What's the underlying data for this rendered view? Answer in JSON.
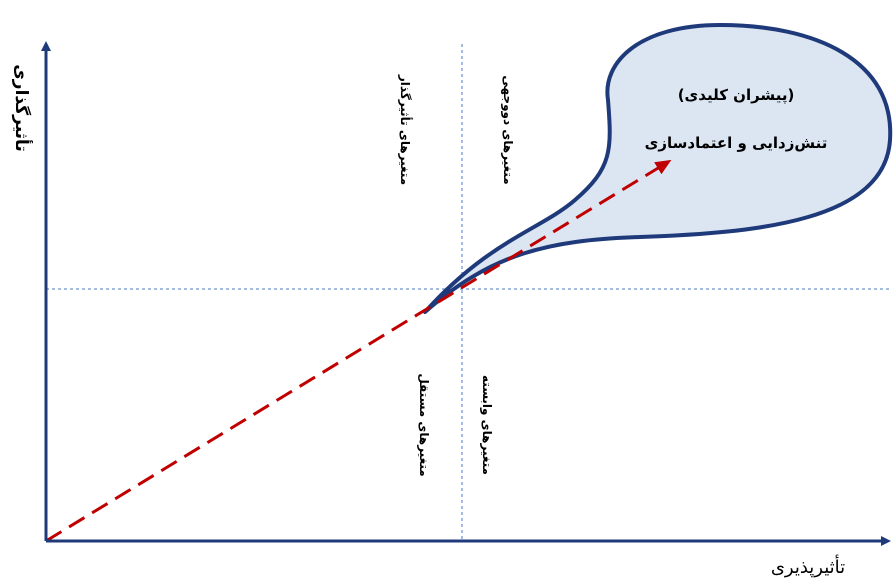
{
  "axes": {
    "y_label": "تأثیرگذاری",
    "x_label": "تأثیرپذیری"
  },
  "quadrants": {
    "top_left": "متغیرهای تأثیرگذار",
    "top_right": "متغیرهای دووجهی",
    "bottom_left": "متغیرهای مستقل",
    "bottom_right": "متغیرهای وابسته"
  },
  "key_driver": {
    "title": "(پیشران کلیدی)",
    "name": "تنش‌زدایی و اعتمادسازی"
  },
  "colors": {
    "axis": "#1F3A7A",
    "divider": "#4A7BBE",
    "trend_arrow": "#C00000",
    "bubble_fill": "#DCE6F2",
    "bubble_stroke": "#1F3A7A"
  }
}
